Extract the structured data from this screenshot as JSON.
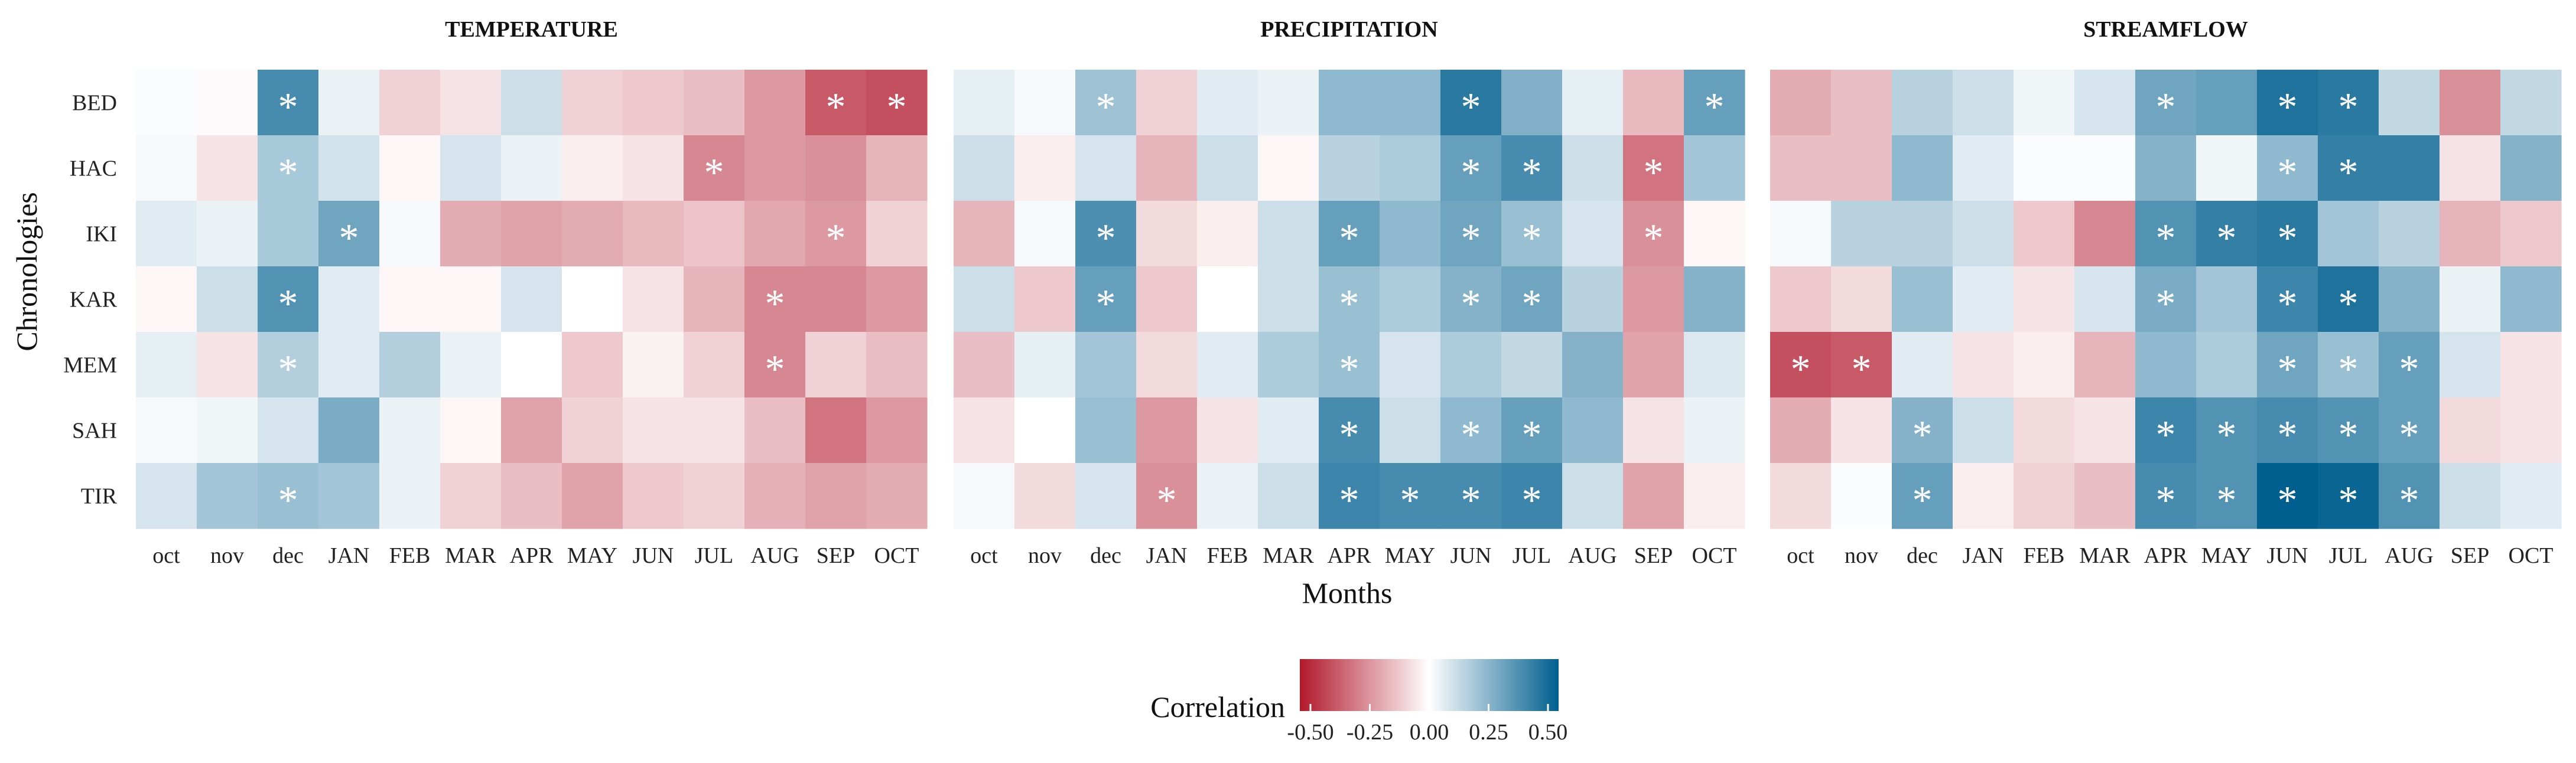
{
  "figure": {
    "xlabel": "Months",
    "ylabel": "Chronologies",
    "legend_title": "Correlation",
    "legend_ticks": [
      "-0.50",
      "-0.25",
      "0.00",
      "0.25",
      "0.50"
    ]
  },
  "colors": {
    "negative": "#b2182b",
    "zero": "#ffffff",
    "positive": "#005f8f",
    "star": "#ffffff",
    "text": "#222222"
  },
  "chart_data": [
    {
      "type": "heatmap",
      "title": "TEMPERATURE",
      "x": [
        "oct",
        "nov",
        "dec",
        "JAN",
        "FEB",
        "MAR",
        "APR",
        "MAY",
        "JUN",
        "JUL",
        "AUG",
        "SEP",
        "OCT"
      ],
      "y": [
        "BED",
        "HAC",
        "IKI",
        "KAR",
        "MEM",
        "SAH",
        "TIR"
      ],
      "scale": [
        -0.5,
        0.5
      ],
      "values": [
        [
          0.01,
          -0.01,
          0.36,
          0.04,
          -0.1,
          -0.06,
          0.1,
          -0.1,
          -0.12,
          -0.14,
          -0.22,
          -0.36,
          -0.38
        ],
        [
          0.02,
          -0.06,
          0.17,
          0.09,
          -0.02,
          0.08,
          0.04,
          -0.04,
          -0.06,
          -0.26,
          -0.22,
          -0.24,
          -0.16
        ],
        [
          0.06,
          0.04,
          0.17,
          0.28,
          0.02,
          -0.18,
          -0.2,
          -0.18,
          -0.15,
          -0.13,
          -0.19,
          -0.22,
          -0.1
        ],
        [
          -0.02,
          0.1,
          0.34,
          0.06,
          -0.02,
          -0.02,
          0.08,
          0.0,
          -0.06,
          -0.16,
          -0.26,
          -0.26,
          -0.22
        ],
        [
          0.05,
          -0.06,
          0.15,
          0.06,
          0.15,
          0.04,
          0.0,
          -0.12,
          -0.03,
          -0.1,
          -0.26,
          -0.1,
          -0.14
        ],
        [
          0.02,
          0.03,
          0.08,
          0.26,
          0.04,
          -0.02,
          -0.2,
          -0.1,
          -0.06,
          -0.06,
          -0.14,
          -0.3,
          -0.22
        ],
        [
          0.08,
          0.18,
          0.2,
          0.18,
          0.04,
          -0.1,
          -0.14,
          -0.2,
          -0.12,
          -0.1,
          -0.17,
          -0.2,
          -0.18
        ]
      ],
      "significant": [
        [
          2,
          11,
          12
        ],
        [
          2,
          9
        ],
        [
          3,
          11
        ],
        [
          2,
          10
        ],
        [
          2,
          10
        ],
        [],
        [
          2
        ]
      ]
    },
    {
      "type": "heatmap",
      "title": "PRECIPITATION",
      "x": [
        "oct",
        "nov",
        "dec",
        "JAN",
        "FEB",
        "MAR",
        "APR",
        "MAY",
        "JUN",
        "JUL",
        "AUG",
        "SEP",
        "OCT"
      ],
      "y": [
        "BED",
        "HAC",
        "IKI",
        "KAR",
        "MEM",
        "SAH",
        "TIR"
      ],
      "scale": [
        -0.5,
        0.5
      ],
      "values": [
        [
          0.05,
          0.02,
          0.19,
          -0.1,
          0.06,
          0.04,
          0.22,
          0.22,
          0.42,
          0.25,
          0.05,
          -0.15,
          0.3
        ],
        [
          0.1,
          -0.04,
          0.08,
          -0.16,
          0.1,
          -0.02,
          0.14,
          0.16,
          0.3,
          0.36,
          0.1,
          -0.3,
          0.18
        ],
        [
          -0.16,
          0.02,
          0.35,
          -0.08,
          -0.04,
          0.1,
          0.3,
          0.22,
          0.28,
          0.2,
          0.08,
          -0.24,
          -0.02
        ],
        [
          0.1,
          -0.12,
          0.3,
          -0.12,
          0.0,
          0.1,
          0.2,
          0.16,
          0.24,
          0.28,
          0.14,
          -0.22,
          0.24
        ],
        [
          -0.14,
          0.05,
          0.18,
          -0.08,
          0.06,
          0.16,
          0.2,
          0.08,
          0.16,
          0.12,
          0.24,
          -0.2,
          0.07
        ],
        [
          -0.06,
          0.0,
          0.2,
          -0.22,
          -0.06,
          0.06,
          0.36,
          0.1,
          0.22,
          0.3,
          0.22,
          -0.06,
          0.04
        ],
        [
          0.02,
          -0.08,
          0.08,
          -0.24,
          0.04,
          0.1,
          0.38,
          0.36,
          0.36,
          0.38,
          0.1,
          -0.2,
          -0.04
        ]
      ],
      "significant": [
        [
          2,
          8,
          12
        ],
        [
          8,
          9,
          11
        ],
        [
          2,
          6,
          8,
          9,
          11
        ],
        [
          2,
          6,
          8,
          9
        ],
        [
          6
        ],
        [
          6,
          8,
          9
        ],
        [
          3,
          6,
          7,
          8,
          9
        ]
      ]
    },
    {
      "type": "heatmap",
      "title": "STREAMFLOW",
      "x": [
        "oct",
        "nov",
        "dec",
        "JAN",
        "FEB",
        "MAR",
        "APR",
        "MAY",
        "JUN",
        "JUL",
        "AUG",
        "SEP",
        "OCT"
      ],
      "y": [
        "BED",
        "HAC",
        "IKI",
        "KAR",
        "MEM",
        "SAH",
        "TIR"
      ],
      "scale": [
        -0.5,
        0.5
      ],
      "values": [
        [
          -0.18,
          -0.14,
          0.14,
          0.1,
          0.03,
          0.08,
          0.28,
          0.3,
          0.44,
          0.42,
          0.12,
          -0.24,
          0.12
        ],
        [
          -0.14,
          -0.14,
          0.22,
          0.06,
          0.01,
          0.01,
          0.24,
          0.03,
          0.22,
          0.4,
          0.4,
          -0.06,
          0.24
        ],
        [
          0.02,
          0.14,
          0.14,
          0.1,
          -0.12,
          -0.26,
          0.34,
          0.4,
          0.42,
          0.18,
          0.14,
          -0.16,
          -0.12
        ],
        [
          -0.12,
          -0.08,
          0.2,
          0.06,
          -0.06,
          0.08,
          0.26,
          0.18,
          0.38,
          0.44,
          0.24,
          0.04,
          0.22
        ],
        [
          -0.38,
          -0.36,
          0.06,
          -0.06,
          -0.04,
          -0.16,
          0.22,
          0.16,
          0.28,
          0.2,
          0.3,
          0.08,
          -0.06
        ],
        [
          -0.18,
          -0.06,
          0.24,
          0.1,
          -0.08,
          -0.06,
          0.38,
          0.34,
          0.36,
          0.34,
          0.3,
          -0.08,
          -0.06
        ],
        [
          -0.08,
          0.01,
          0.3,
          -0.04,
          -0.1,
          -0.14,
          0.36,
          0.34,
          0.5,
          0.48,
          0.34,
          0.1,
          0.06
        ]
      ],
      "significant": [
        [
          6,
          8,
          9
        ],
        [
          8,
          9
        ],
        [
          6,
          7,
          8
        ],
        [
          6,
          8,
          9
        ],
        [
          0,
          1,
          8,
          9,
          10
        ],
        [
          2,
          6,
          7,
          8,
          9,
          10
        ],
        [
          2,
          6,
          7,
          8,
          9,
          10
        ]
      ]
    }
  ]
}
